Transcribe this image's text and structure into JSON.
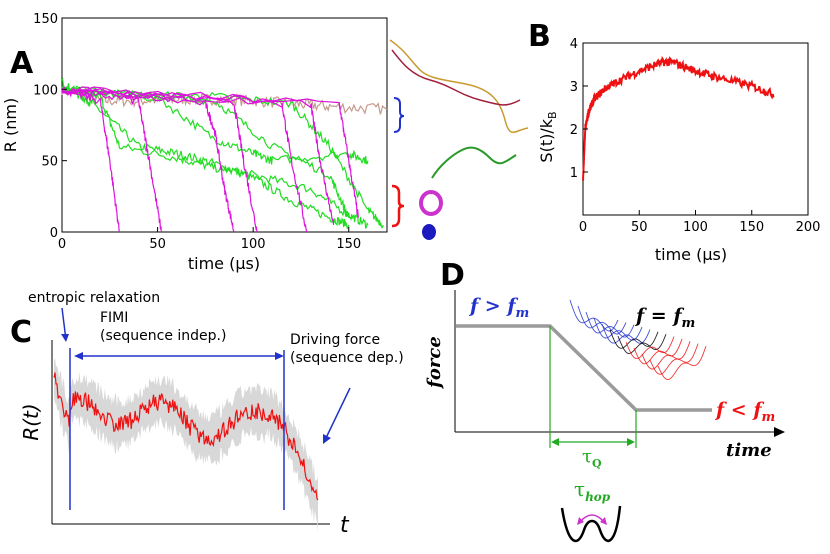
{
  "panels": {
    "A": {
      "letter": "A",
      "xlabel": "time (μs)",
      "ylabel": "R (nm)",
      "xticks": [
        "0",
        "50",
        "100",
        "150"
      ],
      "yticks": [
        "0",
        "50",
        "100",
        "150"
      ]
    },
    "B": {
      "letter": "B",
      "xlabel": "time (μs)",
      "ylabel": "S(t)/k",
      "ylabel_sub": "B",
      "xticks": [
        "0",
        "50",
        "100",
        "150",
        "200"
      ],
      "yticks": [
        "1",
        "2",
        "3",
        "4"
      ]
    },
    "C": {
      "letter": "C",
      "ylabel": "R(t)",
      "xlabel": "t",
      "annotations": {
        "entropic": "entropic relaxation",
        "fimi_line1": "FIMI",
        "fimi_line2": "(sequence indep.)",
        "drive_line1": "Driving force",
        "drive_line2": "(sequence dep.)"
      }
    },
    "D": {
      "letter": "D",
      "ylabel": "force",
      "xlabel": "time",
      "label_high": "f > f",
      "label_high_sub": "m",
      "label_eq": "f = f",
      "label_eq_sub": "m",
      "label_low": "f < f",
      "label_low_sub": "m",
      "tau_q": "τ",
      "tau_q_sub": "Q",
      "tau_hop": "τ",
      "tau_hop_sub": "hop"
    }
  },
  "colors": {
    "green": "#22dd22",
    "magenta": "#dd11dd",
    "rosy": "#c49a8e",
    "red": "#ee1111",
    "blue": "#2233cc",
    "gray": "#9a9a9a",
    "band": "#d8d8d8",
    "tau_green": "#22aa22"
  },
  "chart_data": [
    {
      "panel": "A",
      "type": "line",
      "xlim": [
        0,
        170
      ],
      "ylim": [
        0,
        150
      ],
      "series": [
        {
          "color": "rosy",
          "x": [
            0,
            20,
            40,
            60,
            80,
            100,
            120,
            140,
            170
          ],
          "y": [
            100,
            92,
            92,
            93,
            93,
            92,
            90,
            88,
            86
          ]
        },
        {
          "color": "green",
          "x": [
            0,
            10,
            16,
            40,
            60,
            80,
            100,
            120,
            140,
            150
          ],
          "y": [
            105,
            95,
            90,
            60,
            55,
            48,
            38,
            22,
            10,
            5
          ]
        },
        {
          "color": "green",
          "x": [
            0,
            20,
            30,
            60,
            80,
            100,
            130,
            150,
            160
          ],
          "y": [
            100,
            95,
            60,
            52,
            45,
            40,
            30,
            12,
            5
          ]
        },
        {
          "color": "green",
          "x": [
            0,
            50,
            80,
            100,
            110,
            150,
            160
          ],
          "y": [
            100,
            94,
            65,
            55,
            50,
            55,
            50
          ]
        },
        {
          "color": "green",
          "x": [
            0,
            40,
            80,
            110,
            140,
            150
          ],
          "y": [
            100,
            96,
            92,
            60,
            40,
            10
          ]
        },
        {
          "color": "green",
          "x": [
            0,
            40,
            80,
            120,
            140,
            160,
            168
          ],
          "y": [
            100,
            96,
            95,
            90,
            60,
            15,
            5
          ]
        },
        {
          "color": "magenta",
          "x": [
            0,
            20,
            25,
            30
          ],
          "y": [
            100,
            92,
            50,
            0
          ]
        },
        {
          "color": "magenta",
          "x": [
            0,
            40,
            45,
            52
          ],
          "y": [
            100,
            92,
            55,
            0
          ]
        },
        {
          "color": "magenta",
          "x": [
            0,
            75,
            80,
            85,
            90
          ],
          "y": [
            100,
            90,
            70,
            30,
            0
          ]
        },
        {
          "color": "magenta",
          "x": [
            0,
            90,
            95,
            102
          ],
          "y": [
            100,
            90,
            50,
            0
          ]
        },
        {
          "color": "magenta",
          "x": [
            0,
            115,
            120,
            128
          ],
          "y": [
            100,
            90,
            50,
            0
          ]
        },
        {
          "color": "magenta",
          "x": [
            0,
            130,
            135,
            142
          ],
          "y": [
            100,
            90,
            50,
            5
          ]
        },
        {
          "color": "magenta",
          "x": [
            0,
            145,
            150,
            155
          ],
          "y": [
            100,
            90,
            50,
            10
          ]
        }
      ]
    },
    {
      "panel": "B",
      "type": "line",
      "xlim": [
        0,
        200
      ],
      "ylim": [
        0,
        4
      ],
      "series": [
        {
          "color": "red",
          "x": [
            0,
            2,
            5,
            10,
            20,
            30,
            50,
            70,
            80,
            100,
            120,
            150,
            170
          ],
          "y": [
            0.8,
            2.0,
            2.4,
            2.7,
            2.95,
            3.1,
            3.35,
            3.55,
            3.55,
            3.35,
            3.2,
            3.0,
            2.8
          ]
        }
      ]
    }
  ]
}
